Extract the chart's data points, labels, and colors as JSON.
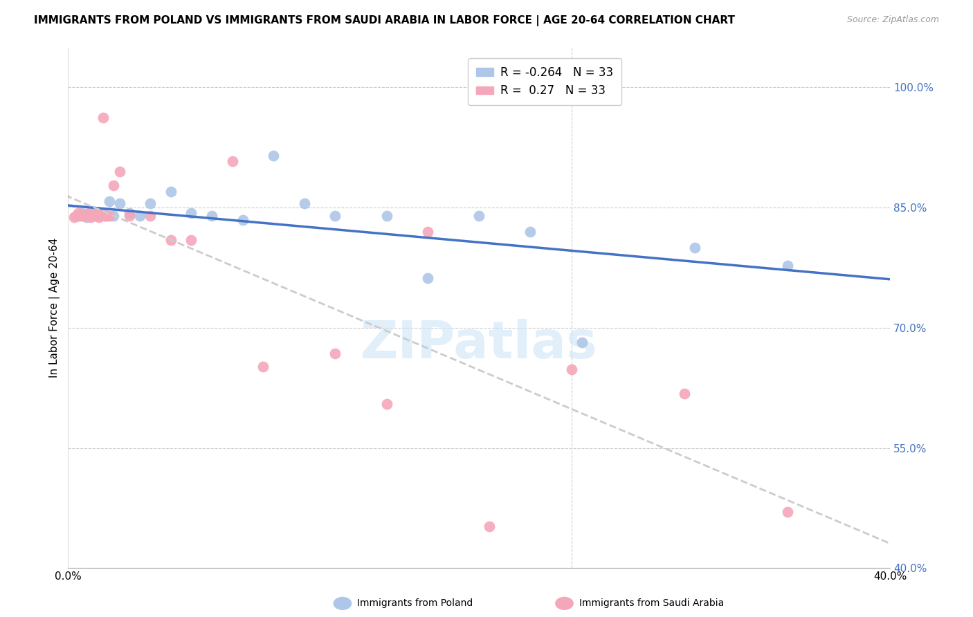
{
  "title": "IMMIGRANTS FROM POLAND VS IMMIGRANTS FROM SAUDI ARABIA IN LABOR FORCE | AGE 20-64 CORRELATION CHART",
  "source": "Source: ZipAtlas.com",
  "ylabel": "In Labor Force | Age 20-64",
  "xlim": [
    0.0,
    0.4
  ],
  "ylim": [
    0.4,
    1.05
  ],
  "yticks": [
    0.4,
    0.55,
    0.7,
    0.85,
    1.0
  ],
  "ytick_labels": [
    "40.0%",
    "55.0%",
    "70.0%",
    "85.0%",
    "100.0%"
  ],
  "xticks": [
    0.0,
    0.05,
    0.1,
    0.15,
    0.2,
    0.25,
    0.3,
    0.35,
    0.4
  ],
  "xtick_labels": [
    "0.0%",
    "",
    "",
    "",
    "",
    "",
    "",
    "",
    "40.0%"
  ],
  "poland_R": -0.264,
  "poland_N": 33,
  "saudi_R": 0.27,
  "saudi_N": 33,
  "poland_color": "#aec6e8",
  "saudi_color": "#f4a7b9",
  "poland_line_color": "#4472c4",
  "saudi_line_color": "#e06080",
  "trendline_ext_color": "#cccccc",
  "background_color": "#ffffff",
  "grid_color": "#cccccc",
  "poland_x": [
    0.005,
    0.007,
    0.008,
    0.009,
    0.01,
    0.011,
    0.012,
    0.013,
    0.014,
    0.015,
    0.016,
    0.017,
    0.018,
    0.02,
    0.022,
    0.025,
    0.03,
    0.035,
    0.04,
    0.05,
    0.06,
    0.07,
    0.085,
    0.1,
    0.115,
    0.13,
    0.155,
    0.175,
    0.2,
    0.225,
    0.25,
    0.305,
    0.35
  ],
  "poland_y": [
    0.84,
    0.843,
    0.84,
    0.838,
    0.842,
    0.84,
    0.843,
    0.84,
    0.84,
    0.843,
    0.84,
    0.843,
    0.84,
    0.858,
    0.84,
    0.855,
    0.843,
    0.84,
    0.855,
    0.87,
    0.843,
    0.84,
    0.835,
    0.915,
    0.855,
    0.84,
    0.84,
    0.762,
    0.84,
    0.82,
    0.682,
    0.8,
    0.778
  ],
  "saudi_x": [
    0.003,
    0.004,
    0.005,
    0.006,
    0.007,
    0.008,
    0.009,
    0.01,
    0.011,
    0.012,
    0.013,
    0.014,
    0.015,
    0.016,
    0.017,
    0.018,
    0.019,
    0.02,
    0.022,
    0.025,
    0.03,
    0.04,
    0.05,
    0.06,
    0.08,
    0.095,
    0.13,
    0.155,
    0.175,
    0.205,
    0.245,
    0.3,
    0.35
  ],
  "saudi_y": [
    0.838,
    0.84,
    0.843,
    0.84,
    0.84,
    0.84,
    0.84,
    0.843,
    0.838,
    0.84,
    0.843,
    0.84,
    0.838,
    0.843,
    0.962,
    0.84,
    0.84,
    0.84,
    0.878,
    0.895,
    0.84,
    0.84,
    0.81,
    0.81,
    0.908,
    0.652,
    0.668,
    0.605,
    0.82,
    0.452,
    0.648,
    0.618,
    0.47
  ]
}
